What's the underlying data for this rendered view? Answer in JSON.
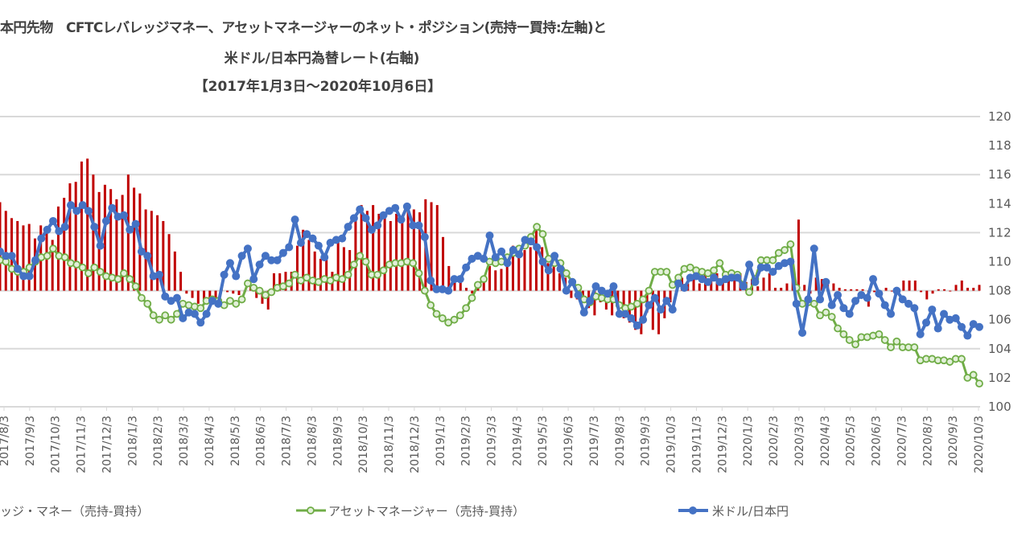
{
  "chart_data": {
    "type": "bar+line",
    "title_lines": [
      "本円先物　CFTCレバレッジマネー、アセットマネージャーのネット・ポジション(売持ー買持:左軸)と",
      "米ドル/日本円為替レート(右軸)",
      "【2017年1月3日～2020年10月6日】"
    ],
    "right_axis": {
      "ylim": [
        100,
        120
      ],
      "ticks": [
        "100",
        "102",
        "104",
        "106",
        "108",
        "110",
        "112",
        "114",
        "116",
        "118",
        "120"
      ]
    },
    "gridlines": [
      100,
      104,
      108,
      112,
      116,
      120
    ],
    "bar_baseline": 108,
    "x_tick_labels": [
      "2017/8/3",
      "2017/9/3",
      "2017/10/3",
      "2017/11/3",
      "2017/12/3",
      "2018/1/3",
      "2018/2/3",
      "2018/3/3",
      "2018/4/3",
      "2018/5/3",
      "2018/6/3",
      "2018/7/3",
      "2018/8/3",
      "2018/9/3",
      "2018/10/3",
      "2018/11/3",
      "2018/12/3",
      "2019/1/3",
      "2019/2/3",
      "2019/3/3",
      "2019/4/3",
      "2019/5/3",
      "2019/6/3",
      "2019/7/3",
      "2019/8/3",
      "2019/9/3",
      "2019/10/3",
      "2019/11/3",
      "2019/12/3",
      "2020/1/3",
      "2020/2/3",
      "2020/3/3",
      "2020/4/3",
      "2020/5/3",
      "2020/6/3",
      "2020/7/3",
      "2020/8/3",
      "2020/9/3",
      "2020/10/3"
    ],
    "legend": [
      {
        "label": "ッジ・マネー（売持-買持）",
        "color": "#c00000"
      },
      {
        "label": "アセットマネージャー（売持-買持）",
        "color": "#70ad47"
      },
      {
        "label": "米ドル/日本円",
        "color": "#4472c4"
      }
    ],
    "series": [
      {
        "name": "leveraged_money_net_bars_relative",
        "type": "bar",
        "color": "#c00000",
        "values": [
          6.1,
          5.5,
          5.0,
          4.8,
          4.5,
          4.6,
          3.6,
          4.5,
          4.4,
          3.5,
          5.8,
          6.4,
          7.4,
          7.5,
          8.9,
          9.1,
          8.0,
          6.8,
          7.3,
          7.0,
          6.3,
          6.6,
          8.0,
          7.1,
          6.7,
          5.6,
          5.5,
          5.2,
          4.8,
          3.9,
          2.7,
          1.3,
          -0.2,
          -0.5,
          -0.9,
          -0.8,
          -0.6,
          -0.7,
          0.1,
          -0.1,
          -0.2,
          -0.3,
          -0.1,
          0.4,
          -0.5,
          -0.9,
          -1.3,
          1.2,
          1.2,
          1.3,
          1.3,
          3.1,
          4.2,
          3.5,
          2.7,
          2.2,
          2.4,
          1.3,
          3.4,
          3.0,
          2.8,
          5.2,
          5.9,
          5.5,
          5.9,
          5.3,
          5.3,
          4.8,
          5.3,
          5.0,
          5.5,
          5.6,
          5.4,
          6.3,
          6.1,
          5.9,
          3.7,
          1.7,
          1.0,
          0.6,
          0.2,
          -0.2,
          0.3,
          0.7,
          1.7,
          1.4,
          1.5,
          1.9,
          3.1,
          3.0,
          2.8,
          3.0,
          4.3,
          3.0,
          1.9,
          2.4,
          1.2,
          0.9,
          -0.5,
          -0.6,
          -0.4,
          -1.2,
          -1.7,
          -0.8,
          -1.3,
          -1.7,
          -0.8,
          -1.9,
          -2.2,
          -2.7,
          -3.0,
          -1.5,
          -2.7,
          -3.0,
          -1.9,
          -0.8,
          -0.1,
          0.9,
          0.5,
          1.1,
          0.5,
          1.2,
          0.8,
          1.2,
          0.6,
          1.1,
          0.9,
          1.2,
          0.6,
          0.8,
          0.3,
          0.9,
          1.2,
          0.2,
          0.2,
          0.5,
          2.2,
          4.9,
          0.4,
          -0.2,
          0.9,
          0.8,
          0.7,
          0.5,
          0.2,
          0.1,
          0.1,
          0.1,
          0.1,
          -1.1,
          -0.1,
          -0.1,
          0.2,
          0,
          -0.1,
          0.7,
          0.7,
          0.7,
          -0.1,
          -0.6,
          -0.2,
          0.1,
          0.1,
          0,
          0.4,
          0.7,
          0.2,
          0.2,
          0.4
        ]
      },
      {
        "name": "asset_manager_net",
        "type": "line",
        "color": "#70ad47",
        "marker_fill": "#e2f0d9",
        "values": [
          110.1,
          110.0,
          109.5,
          109.3,
          109.3,
          109.6,
          110.0,
          110.3,
          110.4,
          110.9,
          110.4,
          110.3,
          109.9,
          109.8,
          109.6,
          109.2,
          109.6,
          109.3,
          109.0,
          108.9,
          108.8,
          109.2,
          108.8,
          108.3,
          107.5,
          107.1,
          106.3,
          106.0,
          106.3,
          106.0,
          106.4,
          107.1,
          107.0,
          106.9,
          106.8,
          107.3,
          107.4,
          107.3,
          107.0,
          107.3,
          107.1,
          107.4,
          108.5,
          108.2,
          108.0,
          107.7,
          107.9,
          108.2,
          108.3,
          108.5,
          109.1,
          108.7,
          108.9,
          108.7,
          108.6,
          108.8,
          108.7,
          108.9,
          108.8,
          109.1,
          109.8,
          110.4,
          110.0,
          109.1,
          109.1,
          109.4,
          109.8,
          109.9,
          109.9,
          110.0,
          109.9,
          109.2,
          108.0,
          107.0,
          106.4,
          106.1,
          105.8,
          106.0,
          106.3,
          106.8,
          107.5,
          108.4,
          108.8,
          110.0,
          109.9,
          110.0,
          110.3,
          110.6,
          110.9,
          111.1,
          111.7,
          112.4,
          111.9,
          110.2,
          109.9,
          109.9,
          109.2,
          108.6,
          108.2,
          107.4,
          107.2,
          107.6,
          107.5,
          107.4,
          107.4,
          107.0,
          106.8,
          106.9,
          107.1,
          107.4,
          108.0,
          109.3,
          109.3,
          109.3,
          108.4,
          108.9,
          109.5,
          109.6,
          109.4,
          109.3,
          109.2,
          109.4,
          109.9,
          109.1,
          109.2,
          109.1,
          108.4,
          107.9,
          108.8,
          110.1,
          110.1,
          110.1,
          110.6,
          110.8,
          111.2,
          108.2,
          107.1,
          107.2,
          107.1,
          106.3,
          106.5,
          106.2,
          105.4,
          105.0,
          104.6,
          104.3,
          104.8,
          104.8,
          104.9,
          105.0,
          104.6,
          104.1,
          104.5,
          104.1,
          104.1,
          104.1,
          103.2,
          103.3,
          103.3,
          103.2,
          103.2,
          103.1,
          103.3,
          103.3,
          102.0,
          102.2,
          101.6
        ]
      },
      {
        "name": "米ドル/日本円",
        "type": "line",
        "color": "#4472c4",
        "values": [
          110.7,
          110.4,
          110.4,
          109.5,
          109.0,
          109.0,
          110.1,
          111.6,
          112.2,
          112.8,
          112.1,
          112.4,
          113.9,
          113.5,
          113.9,
          113.5,
          112.4,
          111.1,
          112.8,
          113.7,
          113.1,
          113.2,
          112.2,
          112.6,
          110.7,
          110.4,
          109.0,
          109.1,
          107.6,
          107.3,
          107.5,
          106.1,
          106.5,
          106.4,
          105.8,
          106.4,
          107.3,
          107.1,
          109.1,
          109.9,
          109.0,
          110.4,
          110.9,
          108.8,
          109.8,
          110.4,
          110.1,
          110.1,
          110.6,
          111.0,
          112.9,
          111.3,
          111.9,
          111.6,
          111.1,
          110.3,
          111.3,
          111.5,
          111.6,
          112.4,
          113.0,
          113.6,
          113.0,
          112.2,
          112.5,
          113.2,
          113.5,
          113.7,
          112.9,
          113.8,
          112.5,
          112.5,
          111.7,
          108.7,
          108.1,
          108.1,
          108.0,
          108.8,
          108.8,
          109.6,
          110.2,
          110.4,
          110.2,
          111.8,
          110.3,
          110.7,
          109.9,
          110.8,
          110.5,
          111.5,
          111.4,
          111.0,
          110.0,
          109.4,
          110.4,
          109.5,
          108.0,
          108.6,
          107.7,
          106.5,
          107.3,
          108.3,
          108.0,
          107.8,
          108.3,
          106.4,
          106.4,
          106.1,
          105.6,
          106.0,
          107.0,
          107.5,
          106.7,
          107.3,
          106.7,
          108.5,
          108.2,
          108.9,
          109.0,
          108.8,
          108.6,
          108.9,
          108.6,
          108.8,
          108.9,
          108.9,
          108.3,
          109.8,
          108.6,
          109.6,
          109.6,
          109.3,
          109.7,
          109.9,
          110.0,
          107.1,
          105.1,
          107.4,
          110.9,
          107.4,
          108.6,
          107.0,
          107.7,
          106.8,
          106.4,
          107.3,
          107.7,
          107.5,
          108.8,
          107.8,
          107.0,
          106.4,
          108.0,
          107.4,
          107.1,
          106.8,
          105.0,
          105.8,
          106.7,
          105.4,
          106.4,
          106.0,
          106.1,
          105.5,
          104.9,
          105.7,
          105.5
        ]
      }
    ]
  }
}
